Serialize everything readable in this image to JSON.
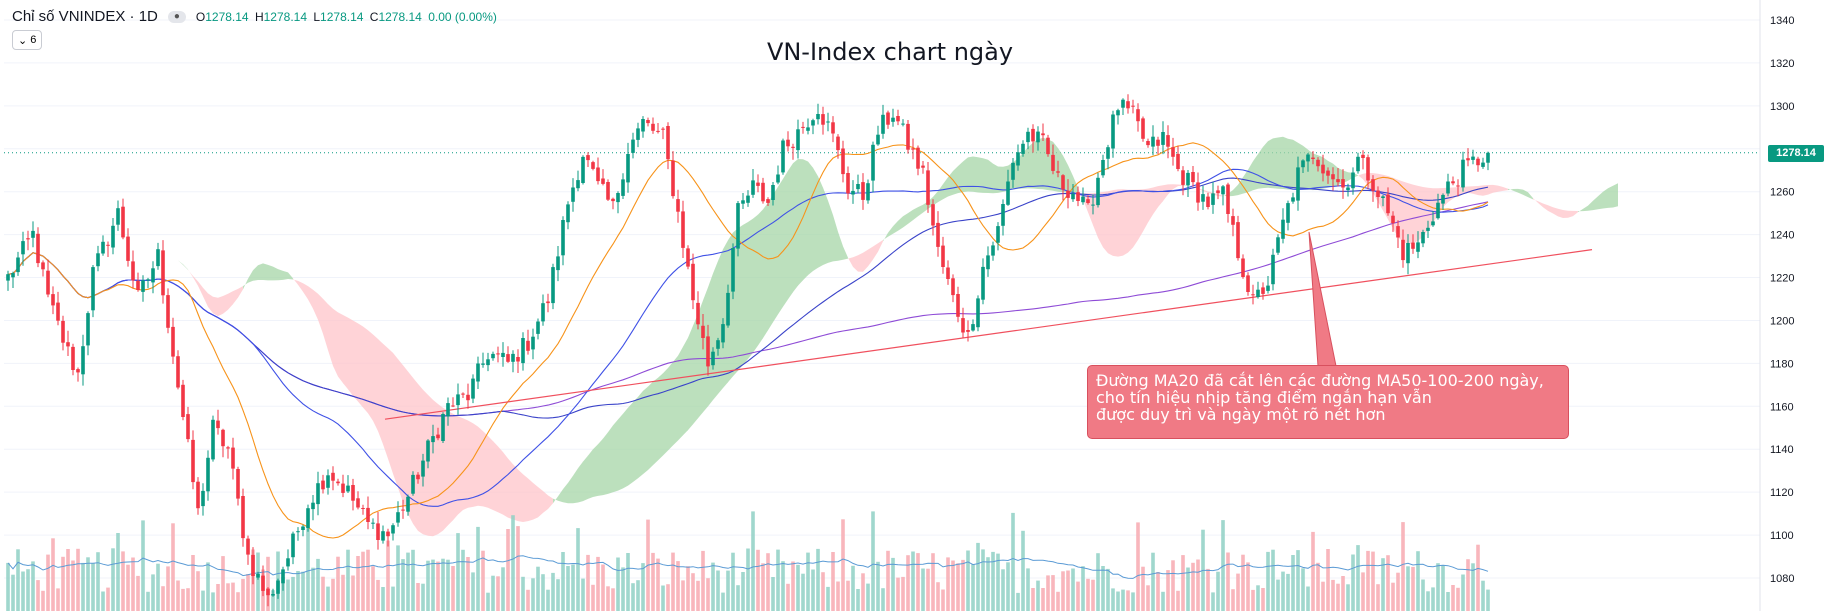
{
  "header": {
    "symbol": "Chỉ số VNINDEX · 1D",
    "collapse_count": "6",
    "open_label": "O",
    "open": "1278.14",
    "high_label": "H",
    "high": "1278.14",
    "low_label": "L",
    "low": "1278.14",
    "close_label": "C",
    "close": "1278.14",
    "change": "0.00 (0.00%)"
  },
  "annotation": {
    "lines": [
      "Đường MA20 đã cắt lên các đường MA50-100-200 ngày,",
      "cho tín hiệu nhịp tăng điểm ngắn hạn vẫn",
      " được duy trì và ngày một rõ nét hơn"
    ]
  },
  "colors": {
    "up": "#089981",
    "down": "#f23645",
    "ma20": "#f7931a",
    "ma50": "#3f51e6",
    "ma100": "#3a43c9",
    "ma200": "#8e4bd6",
    "cloud_bull": "#a5d6a7",
    "cloud_bear": "#ffc4c9",
    "trendline": "#f0505e"
  },
  "chart_data": {
    "type": "candlestick",
    "title": "VN-Index chart ngày",
    "symbol": "VNINDEX",
    "timeframe": "1D",
    "y_ticks": [
      1080,
      1100,
      1120,
      1140,
      1160,
      1180,
      1200,
      1220,
      1240,
      1260,
      1280,
      1300,
      1320,
      1340
    ],
    "ylim": [
      1072,
      1346
    ],
    "last_price": 1278.14,
    "last_price_label": "1278.14",
    "anchors": [
      [
        0,
        1220
      ],
      [
        5,
        1240
      ],
      [
        8,
        1210
      ],
      [
        12,
        1185
      ],
      [
        14,
        1175
      ],
      [
        17,
        1222
      ],
      [
        22,
        1250
      ],
      [
        26,
        1210
      ],
      [
        30,
        1230
      ],
      [
        34,
        1170
      ],
      [
        38,
        1110
      ],
      [
        41,
        1150
      ],
      [
        44,
        1140
      ],
      [
        48,
        1090
      ],
      [
        52,
        1070
      ],
      [
        56,
        1090
      ],
      [
        60,
        1115
      ],
      [
        64,
        1130
      ],
      [
        68,
        1120
      ],
      [
        72,
        1105
      ],
      [
        76,
        1100
      ],
      [
        80,
        1118
      ],
      [
        84,
        1140
      ],
      [
        88,
        1160
      ],
      [
        92,
        1165
      ],
      [
        96,
        1185
      ],
      [
        100,
        1180
      ],
      [
        104,
        1190
      ],
      [
        108,
        1210
      ],
      [
        112,
        1255
      ],
      [
        115,
        1278
      ],
      [
        118,
        1262
      ],
      [
        121,
        1252
      ],
      [
        124,
        1280
      ],
      [
        127,
        1292
      ],
      [
        131,
        1285
      ],
      [
        134,
        1250
      ],
      [
        137,
        1210
      ],
      [
        140,
        1180
      ],
      [
        143,
        1200
      ],
      [
        146,
        1250
      ],
      [
        149,
        1262
      ],
      [
        152,
        1255
      ],
      [
        155,
        1280
      ],
      [
        158,
        1288
      ],
      [
        162,
        1300
      ],
      [
        165,
        1285
      ],
      [
        168,
        1262
      ],
      [
        171,
        1258
      ],
      [
        174,
        1288
      ],
      [
        177,
        1297
      ],
      [
        180,
        1282
      ],
      [
        183,
        1268
      ],
      [
        186,
        1232
      ],
      [
        189,
        1210
      ],
      [
        192,
        1192
      ],
      [
        195,
        1225
      ],
      [
        198,
        1242
      ],
      [
        201,
        1275
      ],
      [
        204,
        1287
      ],
      [
        207,
        1282
      ],
      [
        210,
        1265
      ],
      [
        213,
        1260
      ],
      [
        216,
        1250
      ],
      [
        219,
        1276
      ],
      [
        222,
        1300
      ],
      [
        225,
        1295
      ],
      [
        228,
        1280
      ],
      [
        231,
        1285
      ],
      [
        234,
        1270
      ],
      [
        237,
        1262
      ],
      [
        240,
        1255
      ],
      [
        243,
        1258
      ],
      [
        246,
        1232
      ],
      [
        249,
        1208
      ],
      [
        252,
        1218
      ],
      [
        255,
        1245
      ],
      [
        258,
        1268
      ],
      [
        261,
        1278
      ],
      [
        264,
        1270
      ],
      [
        267,
        1262
      ],
      [
        270,
        1275
      ],
      [
        273,
        1265
      ],
      [
        276,
        1250
      ],
      [
        279,
        1232
      ],
      [
        282,
        1235
      ],
      [
        285,
        1250
      ],
      [
        288,
        1262
      ],
      [
        291,
        1270
      ],
      [
        294,
        1275
      ],
      [
        296,
        1278.14
      ]
    ]
  }
}
